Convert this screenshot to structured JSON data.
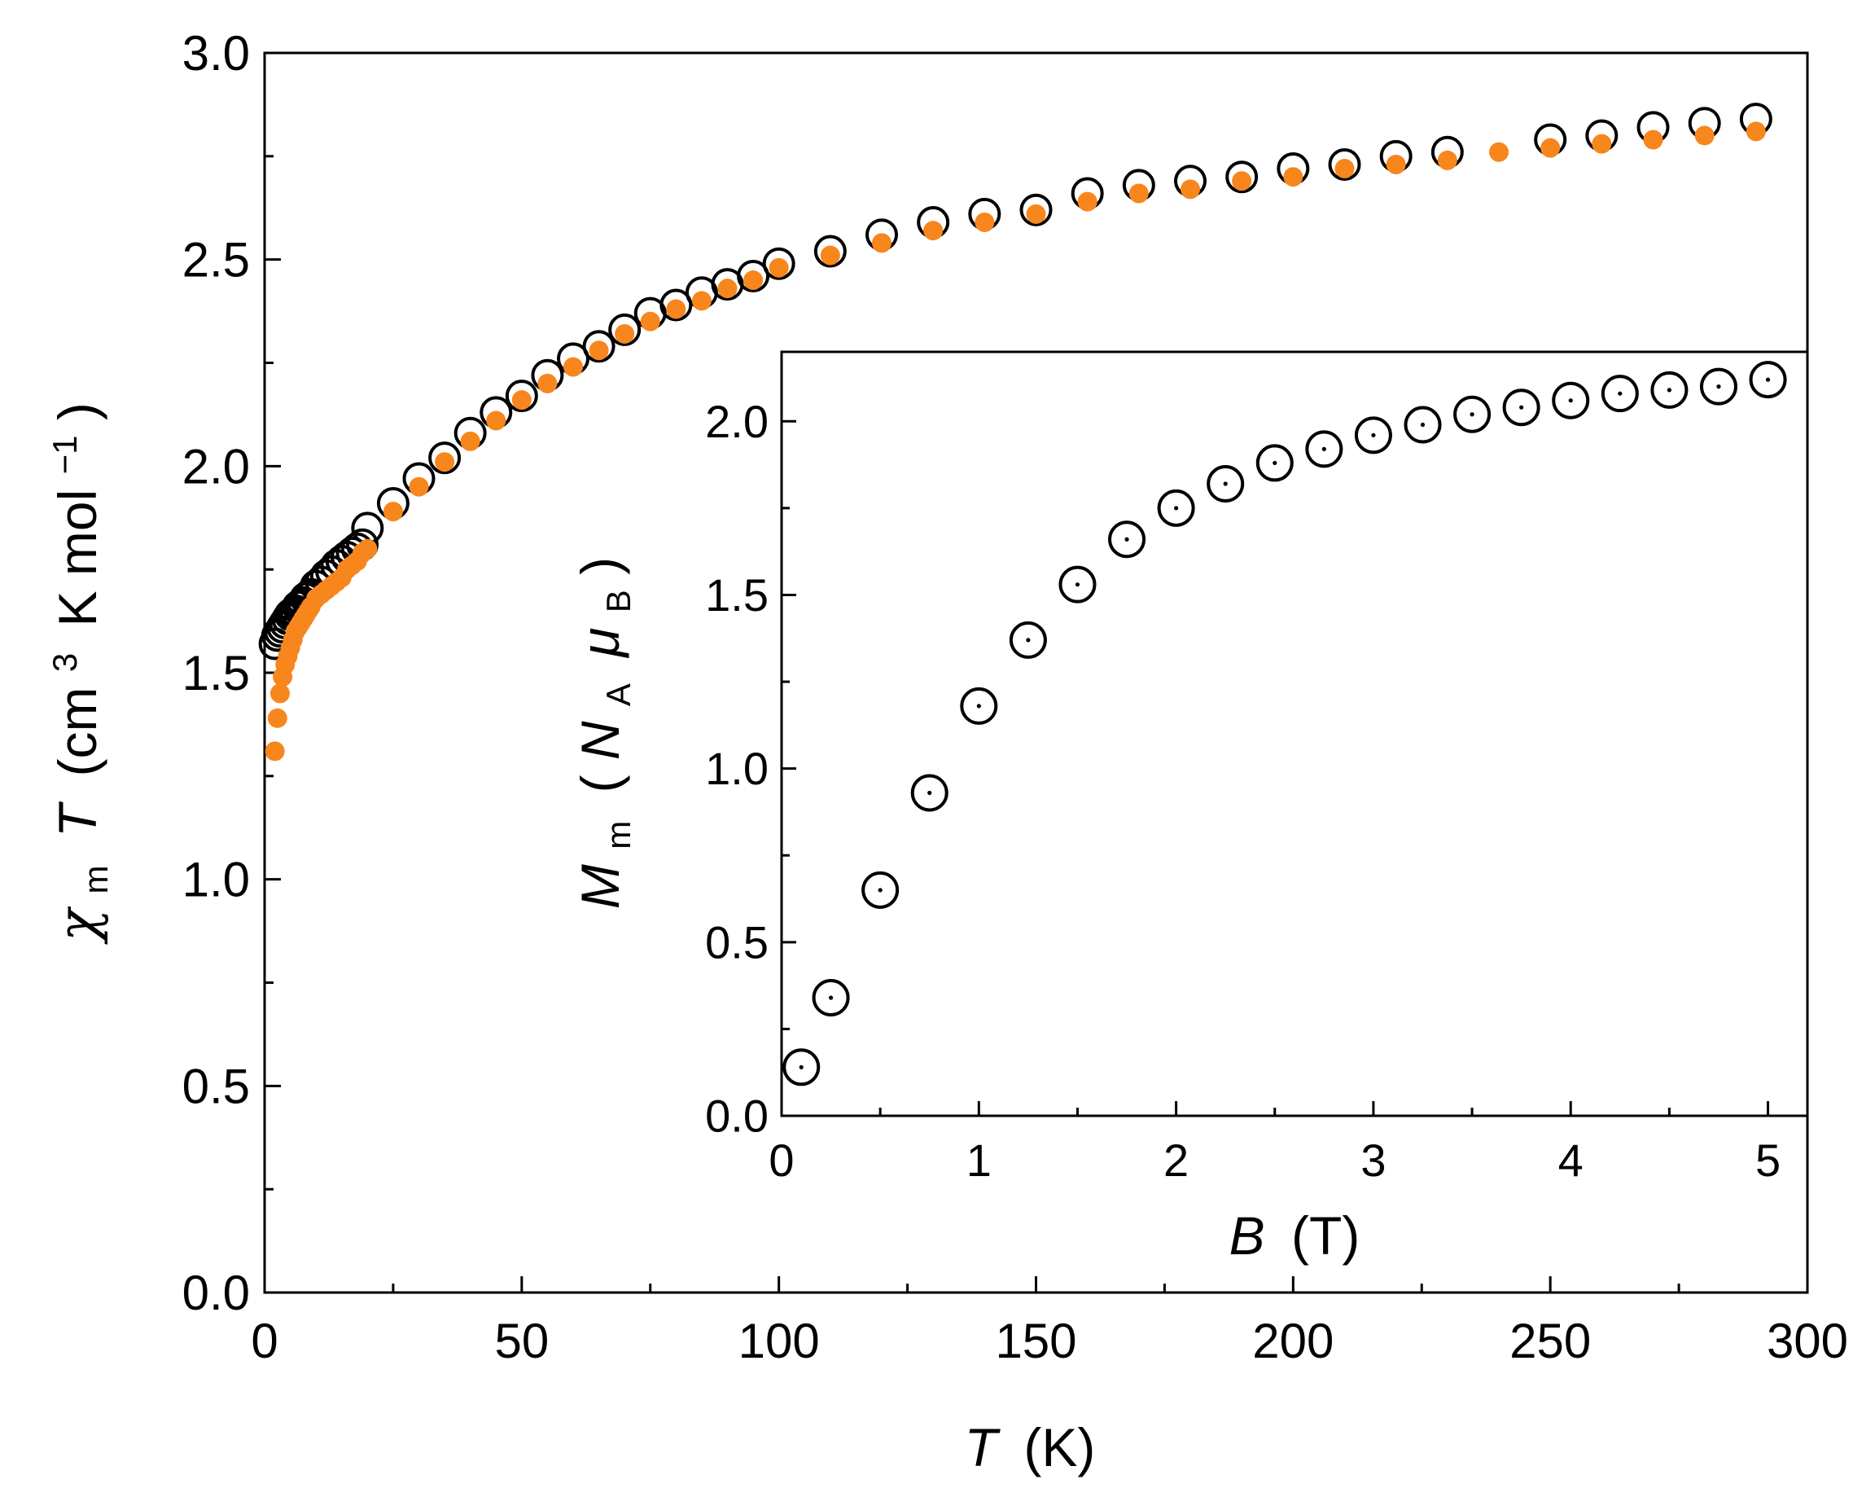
{
  "colors": {
    "axis": "#000000",
    "open_marker": "#000000",
    "filled_marker": "#f7861d",
    "background": "#ffffff"
  },
  "chart_data": [
    {
      "type": "scatter",
      "role": "main",
      "xlim": [
        0,
        300
      ],
      "ylim": [
        0,
        3.0
      ],
      "x_major_ticks": [
        0,
        50,
        100,
        150,
        200,
        250,
        300
      ],
      "x_tick_labels": [
        "0",
        "50",
        "100",
        "150",
        "200",
        "250",
        "300"
      ],
      "y_major_ticks": [
        0,
        0.5,
        1.0,
        1.5,
        2.0,
        2.5,
        3.0
      ],
      "y_tick_labels": [
        "0.0",
        "0.5",
        "1.0",
        "1.5",
        "2.0",
        "2.5",
        "3.0"
      ],
      "xlabel": {
        "var": "T",
        "unit": "(K)"
      },
      "ylabel": {
        "chi": "χ",
        "chi_sub": "m",
        "var": "T",
        "open": "(cm",
        "sup": "3",
        "mid": "K mol",
        "sup2": "−1",
        "close": ")"
      },
      "grid": false,
      "series": [
        {
          "name": "open-circles",
          "style": "open",
          "x": [
            2,
            2.5,
            3,
            3.5,
            4,
            4.5,
            5,
            5.5,
            6,
            6.5,
            7,
            7.5,
            8,
            8.5,
            9,
            10,
            11,
            12,
            13,
            14,
            15,
            16,
            17,
            18,
            19,
            20,
            25,
            30,
            35,
            40,
            45,
            50,
            55,
            60,
            65,
            70,
            75,
            80,
            85,
            90,
            95,
            100,
            110,
            120,
            130,
            140,
            150,
            160,
            170,
            180,
            190,
            200,
            210,
            220,
            230,
            250,
            260,
            270,
            280,
            290
          ],
          "y": [
            1.57,
            1.59,
            1.6,
            1.61,
            1.62,
            1.63,
            1.64,
            1.645,
            1.65,
            1.66,
            1.665,
            1.67,
            1.68,
            1.685,
            1.69,
            1.71,
            1.72,
            1.735,
            1.745,
            1.76,
            1.77,
            1.78,
            1.79,
            1.8,
            1.81,
            1.85,
            1.91,
            1.97,
            2.02,
            2.08,
            2.13,
            2.17,
            2.22,
            2.26,
            2.29,
            2.33,
            2.37,
            2.39,
            2.42,
            2.44,
            2.46,
            2.49,
            2.52,
            2.56,
            2.59,
            2.61,
            2.62,
            2.66,
            2.68,
            2.69,
            2.7,
            2.72,
            2.73,
            2.75,
            2.76,
            2.79,
            2.8,
            2.82,
            2.83,
            2.84
          ]
        },
        {
          "name": "filled-circles",
          "style": "filled",
          "x": [
            2,
            2.5,
            3,
            3.5,
            4,
            4.5,
            5,
            5.5,
            6,
            6.5,
            7,
            7.5,
            8,
            8.5,
            9,
            10,
            11,
            12,
            13,
            14,
            15,
            16,
            17,
            18,
            19,
            20,
            25,
            30,
            35,
            40,
            45,
            50,
            55,
            60,
            65,
            70,
            75,
            80,
            85,
            90,
            95,
            100,
            110,
            120,
            130,
            140,
            150,
            160,
            170,
            180,
            190,
            200,
            210,
            220,
            230,
            240,
            250,
            260,
            270,
            280,
            290
          ],
          "y": [
            1.31,
            1.39,
            1.45,
            1.49,
            1.52,
            1.54,
            1.56,
            1.58,
            1.6,
            1.61,
            1.62,
            1.63,
            1.64,
            1.65,
            1.66,
            1.68,
            1.69,
            1.7,
            1.71,
            1.72,
            1.73,
            1.75,
            1.76,
            1.77,
            1.79,
            1.8,
            1.89,
            1.95,
            2.01,
            2.06,
            2.11,
            2.16,
            2.2,
            2.24,
            2.28,
            2.32,
            2.35,
            2.38,
            2.4,
            2.43,
            2.45,
            2.48,
            2.51,
            2.54,
            2.57,
            2.59,
            2.61,
            2.64,
            2.66,
            2.67,
            2.69,
            2.7,
            2.72,
            2.73,
            2.74,
            2.76,
            2.77,
            2.78,
            2.79,
            2.8,
            2.81
          ]
        }
      ]
    },
    {
      "type": "scatter",
      "role": "inset",
      "xlim": [
        0,
        5.2
      ],
      "ylim": [
        0,
        2.2
      ],
      "x_major_ticks": [
        0,
        1,
        2,
        3,
        4,
        5
      ],
      "x_tick_labels": [
        "0",
        "1",
        "2",
        "3",
        "4",
        "5"
      ],
      "y_major_ticks": [
        0,
        0.5,
        1.0,
        1.5,
        2.0
      ],
      "y_tick_labels": [
        "0.0",
        "0.5",
        "1.0",
        "1.5",
        "2.0"
      ],
      "xlabel": {
        "var": "B",
        "unit": "(T)"
      },
      "ylabel": {
        "var": "M",
        "var_sub": "m",
        "open": "(",
        "na": "N",
        "na_sub": "A",
        "mu": "μ",
        "mu_sub": "B",
        "close": ")"
      },
      "grid": false,
      "series": [
        {
          "name": "open-circles-dotted",
          "style": "open-dot",
          "x": [
            0.1,
            0.25,
            0.5,
            0.75,
            1.0,
            1.25,
            1.5,
            1.75,
            2.0,
            2.25,
            2.5,
            2.75,
            3.0,
            3.25,
            3.5,
            3.75,
            4.0,
            4.25,
            4.5,
            4.75,
            5.0
          ],
          "y": [
            0.14,
            0.34,
            0.65,
            0.93,
            1.18,
            1.37,
            1.53,
            1.66,
            1.75,
            1.82,
            1.88,
            1.92,
            1.96,
            1.99,
            2.02,
            2.04,
            2.06,
            2.08,
            2.09,
            2.1,
            2.12
          ]
        }
      ]
    }
  ]
}
